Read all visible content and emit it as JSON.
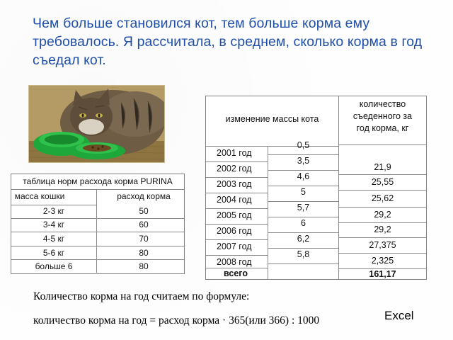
{
  "heading": "Чем больше становился кот, тем больше корма ему требовалось. Я рассчитала, в среднем, сколько корма в год съедал кот.",
  "purina_table": {
    "title": "таблица норм расхода корма PURINA",
    "col_mass": "масса кошки",
    "col_rate": "расход корма",
    "rows": [
      {
        "mass": "2-3 кг",
        "rate": "50"
      },
      {
        "mass": "3-4 кг",
        "rate": "60"
      },
      {
        "mass": "4-5 кг",
        "rate": "70"
      },
      {
        "mass": "5-6 кг",
        "rate": "80"
      },
      {
        "mass": "больше 6",
        "rate": "80"
      }
    ]
  },
  "mass_table": {
    "header_change": "изменение массы кота",
    "header_amount_lines": [
      "количество",
      "съеденного за",
      "год корма, кг"
    ],
    "rows": [
      {
        "year": "2001 год",
        "mass": "0,5",
        "amount": ""
      },
      {
        "year": "2002 год",
        "mass": "3,5",
        "amount": "21,9"
      },
      {
        "year": "2003 год",
        "mass": "4,6",
        "amount": "25,55"
      },
      {
        "year": "2004 год",
        "mass": "5",
        "amount": "25,62"
      },
      {
        "year": "2005 год",
        "mass": "5,7",
        "amount": "29,2"
      },
      {
        "year": "2006 год",
        "mass": "6",
        "amount": "29,2"
      },
      {
        "year": "2007 год",
        "mass": "6,2",
        "amount": "27,375"
      },
      {
        "year": "2008 год",
        "mass": "5,8",
        "amount": "2,325"
      }
    ],
    "total_label": "всего",
    "total_value": "161,17"
  },
  "formula_intro": "Количество корма на год считаем по формуле:",
  "formula": "количество корма на год = расход корма · 365(или 366) : 1000",
  "excel_link": "Excel",
  "colors": {
    "heading": "#1f4fa8",
    "bowl": "#1fa83a",
    "border": "#808080"
  }
}
